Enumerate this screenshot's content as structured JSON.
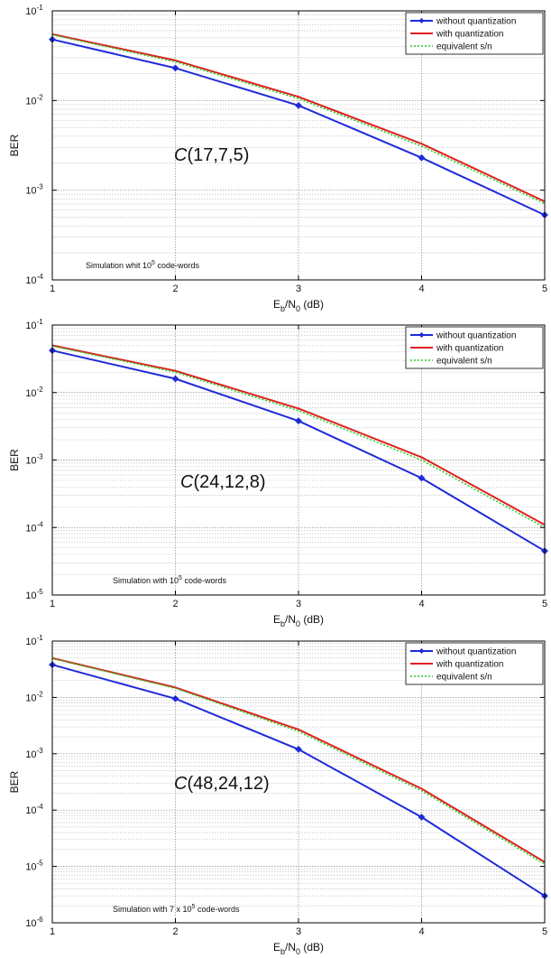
{
  "chart_data": [
    {
      "type": "line",
      "y_scale": "log",
      "ylim": [
        0.0001,
        0.1
      ],
      "xlim": [
        1,
        5
      ],
      "x": [
        1,
        2,
        3,
        4,
        5
      ],
      "xticks": [
        "1",
        "2",
        "3",
        "4",
        "5"
      ],
      "yticks": [
        {
          "base": "10",
          "exp": "-1",
          "value": 0.1
        },
        {
          "base": "10",
          "exp": "-2",
          "value": 0.01
        },
        {
          "base": "10",
          "exp": "-3",
          "value": 0.001
        },
        {
          "base": "10",
          "exp": "-4",
          "value": 0.0001
        }
      ],
      "xlabel": {
        "main": "E",
        "sub1": "b",
        "mid": "/N",
        "sub2": "0",
        "tail": " (dB)"
      },
      "ylabel": "BER",
      "grid": true,
      "legend_position": "top-right",
      "code_label": {
        "italic": "C",
        "rest": "(17,7,5)"
      },
      "annotation": {
        "pre": "Simulation whit 10",
        "sup": "5",
        "post": " code-words"
      },
      "series": [
        {
          "name": "without quantization",
          "color": "#1f2bd8",
          "style": "solid",
          "marker": "diamond",
          "values": [
            0.048,
            0.023,
            0.0088,
            0.0023,
            0.00053
          ]
        },
        {
          "name": "with quantization",
          "color": "#e02020",
          "style": "solid",
          "marker": "none",
          "values": [
            0.055,
            0.028,
            0.011,
            0.0033,
            0.00075
          ]
        },
        {
          "name": "equivalent s/n",
          "color": "#22cc22",
          "style": "dotted",
          "marker": "none",
          "values": [
            0.054,
            0.027,
            0.0105,
            0.0031,
            0.00071
          ]
        }
      ]
    },
    {
      "type": "line",
      "y_scale": "log",
      "ylim": [
        1e-05,
        0.1
      ],
      "xlim": [
        1,
        5
      ],
      "x": [
        1,
        2,
        3,
        4,
        5
      ],
      "xticks": [
        "1",
        "2",
        "3",
        "4",
        "5"
      ],
      "yticks": [
        {
          "base": "10",
          "exp": "-1",
          "value": 0.1
        },
        {
          "base": "10",
          "exp": "-2",
          "value": 0.01
        },
        {
          "base": "10",
          "exp": "-3",
          "value": 0.001
        },
        {
          "base": "10",
          "exp": "-4",
          "value": 0.0001
        },
        {
          "base": "10",
          "exp": "-5",
          "value": 1e-05
        }
      ],
      "xlabel": {
        "main": "E",
        "sub1": "b",
        "mid": "/N",
        "sub2": "0",
        "tail": " (dB)"
      },
      "ylabel": "BER",
      "grid": true,
      "legend_position": "top-right",
      "code_label": {
        "italic": "C",
        "rest": "(24,12,8)"
      },
      "annotation": {
        "pre": "Simulation with 10",
        "sup": "5",
        "post": " code-words"
      },
      "series": [
        {
          "name": "without quantization",
          "color": "#1f2bd8",
          "style": "solid",
          "marker": "diamond",
          "values": [
            0.042,
            0.016,
            0.0038,
            0.00054,
            4.5e-05
          ]
        },
        {
          "name": "with quantization",
          "color": "#e02020",
          "style": "solid",
          "marker": "none",
          "values": [
            0.05,
            0.021,
            0.0058,
            0.0011,
            0.00011
          ]
        },
        {
          "name": "equivalent s/n",
          "color": "#22cc22",
          "style": "dotted",
          "marker": "none",
          "values": [
            0.049,
            0.02,
            0.0054,
            0.001,
            0.0001
          ]
        }
      ]
    },
    {
      "type": "line",
      "y_scale": "log",
      "ylim": [
        1e-06,
        0.1
      ],
      "xlim": [
        1,
        5
      ],
      "x": [
        1,
        2,
        3,
        4,
        5
      ],
      "xticks": [
        "1",
        "2",
        "3",
        "4",
        "5"
      ],
      "yticks": [
        {
          "base": "10",
          "exp": "-1",
          "value": 0.1
        },
        {
          "base": "10",
          "exp": "-2",
          "value": 0.01
        },
        {
          "base": "10",
          "exp": "-3",
          "value": 0.001
        },
        {
          "base": "10",
          "exp": "-4",
          "value": 0.0001
        },
        {
          "base": "10",
          "exp": "-5",
          "value": 1e-05
        },
        {
          "base": "10",
          "exp": "-6",
          "value": 1e-06
        }
      ],
      "xlabel": {
        "main": "E",
        "sub1": "b",
        "mid": "/N",
        "sub2": "0",
        "tail": " (dB)"
      },
      "ylabel": "BER",
      "grid": true,
      "legend_position": "top-right",
      "code_label": {
        "italic": "C",
        "rest": "(48,24,12)"
      },
      "annotation": {
        "pre": "Simulation with  7 x 10",
        "sup": "5",
        "post": " code-words"
      },
      "series": [
        {
          "name": "without quantization",
          "color": "#1f2bd8",
          "style": "solid",
          "marker": "diamond",
          "values": [
            0.038,
            0.0095,
            0.0012,
            7.5e-05,
            3e-06
          ]
        },
        {
          "name": "with quantization",
          "color": "#e02020",
          "style": "solid",
          "marker": "none",
          "values": [
            0.05,
            0.015,
            0.0027,
            0.00024,
            1.2e-05
          ]
        },
        {
          "name": "equivalent s/n",
          "color": "#22cc22",
          "style": "dotted",
          "marker": "none",
          "values": [
            0.049,
            0.0145,
            0.0025,
            0.00022,
            1.1e-05
          ]
        }
      ]
    }
  ]
}
